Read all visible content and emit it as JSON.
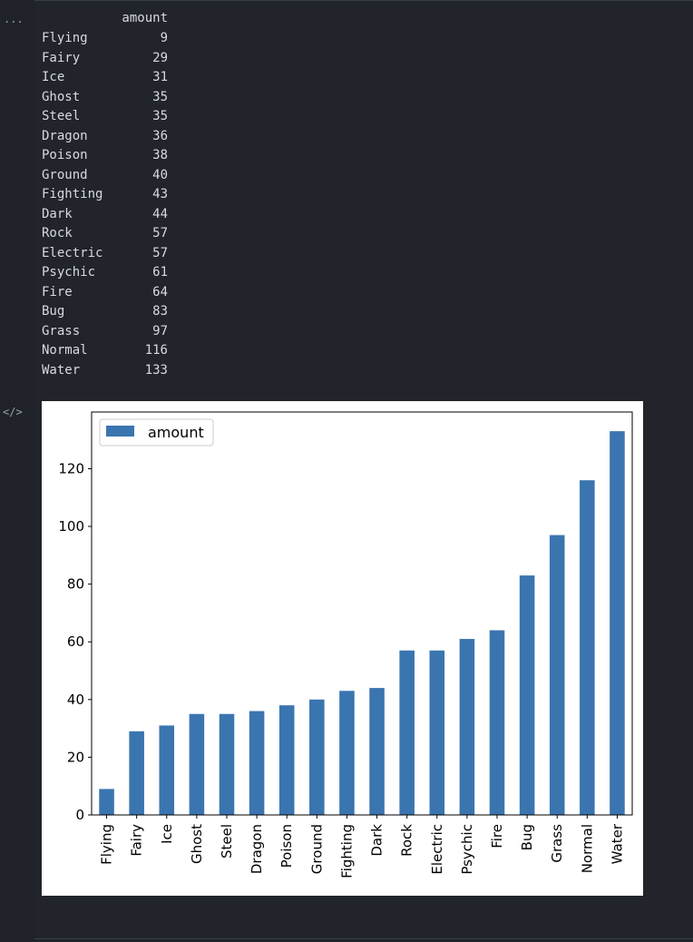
{
  "gutter": {
    "ellipsis": "...",
    "code_icon": "</>"
  },
  "dataframe": {
    "column_header": "amount",
    "rows": [
      {
        "type": "Flying",
        "amount": "9"
      },
      {
        "type": "Fairy",
        "amount": "29"
      },
      {
        "type": "Ice",
        "amount": "31"
      },
      {
        "type": "Ghost",
        "amount": "35"
      },
      {
        "type": "Steel",
        "amount": "35"
      },
      {
        "type": "Dragon",
        "amount": "36"
      },
      {
        "type": "Poison",
        "amount": "38"
      },
      {
        "type": "Ground",
        "amount": "40"
      },
      {
        "type": "Fighting",
        "amount": "43"
      },
      {
        "type": "Dark",
        "amount": "44"
      },
      {
        "type": "Rock",
        "amount": "57"
      },
      {
        "type": "Electric",
        "amount": "57"
      },
      {
        "type": "Psychic",
        "amount": "61"
      },
      {
        "type": "Fire",
        "amount": "64"
      },
      {
        "type": "Bug",
        "amount": "83"
      },
      {
        "type": "Grass",
        "amount": "97"
      },
      {
        "type": "Normal",
        "amount": "116"
      },
      {
        "type": "Water",
        "amount": "133"
      }
    ]
  },
  "chart_data": {
    "type": "bar",
    "categories": [
      "Flying",
      "Fairy",
      "Ice",
      "Ghost",
      "Steel",
      "Dragon",
      "Poison",
      "Ground",
      "Fighting",
      "Dark",
      "Rock",
      "Electric",
      "Psychic",
      "Fire",
      "Bug",
      "Grass",
      "Normal",
      "Water"
    ],
    "series": [
      {
        "name": "amount",
        "values": [
          9,
          29,
          31,
          35,
          35,
          36,
          38,
          40,
          43,
          44,
          57,
          57,
          61,
          64,
          83,
          97,
          116,
          133
        ]
      }
    ],
    "yticks": [
      0,
      20,
      40,
      60,
      80,
      100,
      120
    ],
    "ylim": [
      0,
      139.65
    ],
    "legend": "top-left",
    "grid": false,
    "bar_color": "#3a75b0",
    "xlabel": "",
    "ylabel": "",
    "title": ""
  }
}
